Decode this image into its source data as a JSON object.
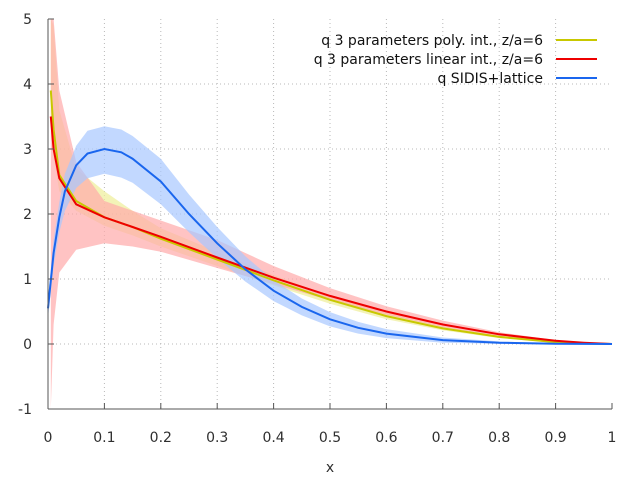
{
  "chart_data": {
    "type": "line",
    "title": "",
    "xlabel": "x",
    "ylabel": "",
    "xlim": [
      0,
      1
    ],
    "ylim": [
      -1,
      5
    ],
    "x_ticks": [
      "0",
      "0.1",
      "0.2",
      "0.3",
      "0.4",
      "0.5",
      "0.6",
      "0.7",
      "0.8",
      "0.9",
      "1"
    ],
    "y_ticks": [
      "-1",
      "0",
      "1",
      "2",
      "3",
      "4",
      "5"
    ],
    "grid": true,
    "legend_position": "top-right",
    "series": [
      {
        "name": "q 3 parameters poly. int., z/a=6",
        "color": "#c8c800",
        "band_color": "#eeee99",
        "x": [
          0.005,
          0.01,
          0.02,
          0.05,
          0.1,
          0.15,
          0.2,
          0.3,
          0.4,
          0.5,
          0.6,
          0.7,
          0.8,
          0.9,
          0.95,
          1.0
        ],
        "y": [
          3.9,
          3.3,
          2.6,
          2.2,
          1.95,
          1.8,
          1.62,
          1.3,
          0.98,
          0.68,
          0.43,
          0.24,
          0.11,
          0.03,
          0.01,
          0.0
        ],
        "y_low": [
          3.4,
          2.9,
          2.35,
          2.05,
          1.82,
          1.67,
          1.5,
          1.2,
          0.9,
          0.62,
          0.38,
          0.21,
          0.09,
          0.02,
          0.005,
          0.0
        ],
        "y_high": [
          5.0,
          4.9,
          3.6,
          2.7,
          2.35,
          2.05,
          1.78,
          1.42,
          1.06,
          0.74,
          0.48,
          0.27,
          0.13,
          0.04,
          0.015,
          0.0
        ]
      },
      {
        "name": "q 3 parameters linear int., z/a=6",
        "color": "#ee0000",
        "band_color": "#ffaaaa",
        "x": [
          0.005,
          0.01,
          0.02,
          0.05,
          0.1,
          0.15,
          0.2,
          0.3,
          0.4,
          0.5,
          0.6,
          0.7,
          0.8,
          0.9,
          0.95,
          1.0
        ],
        "y": [
          3.5,
          3.0,
          2.55,
          2.15,
          1.95,
          1.8,
          1.65,
          1.33,
          1.02,
          0.74,
          0.5,
          0.3,
          0.15,
          0.05,
          0.02,
          0.0
        ],
        "y_low": [
          -1.0,
          0.3,
          1.1,
          1.45,
          1.55,
          1.5,
          1.42,
          1.17,
          0.92,
          0.67,
          0.45,
          0.26,
          0.12,
          0.04,
          0.01,
          0.0
        ],
        "y_high": [
          5.0,
          5.0,
          3.9,
          2.8,
          2.2,
          2.05,
          1.9,
          1.6,
          1.2,
          0.86,
          0.58,
          0.36,
          0.18,
          0.06,
          0.025,
          0.0
        ]
      },
      {
        "name": "q SIDIS+lattice",
        "color": "#1a66ee",
        "band_color": "#a8c8ff",
        "x": [
          0.0,
          0.01,
          0.02,
          0.03,
          0.05,
          0.07,
          0.1,
          0.13,
          0.15,
          0.2,
          0.25,
          0.3,
          0.35,
          0.4,
          0.45,
          0.5,
          0.55,
          0.6,
          0.7,
          0.8,
          0.9,
          1.0
        ],
        "y": [
          0.55,
          1.4,
          1.95,
          2.35,
          2.75,
          2.93,
          3.0,
          2.95,
          2.85,
          2.5,
          2.0,
          1.55,
          1.15,
          0.82,
          0.57,
          0.38,
          0.25,
          0.16,
          0.06,
          0.02,
          0.005,
          0.0
        ],
        "y_low": [
          0.4,
          1.2,
          1.72,
          2.05,
          2.4,
          2.55,
          2.62,
          2.56,
          2.48,
          2.15,
          1.72,
          1.32,
          0.96,
          0.66,
          0.44,
          0.27,
          0.16,
          0.09,
          0.02,
          0.005,
          0.0,
          0.0
        ],
        "y_high": [
          0.7,
          1.6,
          2.18,
          2.62,
          3.05,
          3.28,
          3.35,
          3.3,
          3.2,
          2.85,
          2.3,
          1.8,
          1.35,
          0.98,
          0.7,
          0.49,
          0.34,
          0.23,
          0.1,
          0.04,
          0.01,
          0.0
        ]
      }
    ]
  }
}
